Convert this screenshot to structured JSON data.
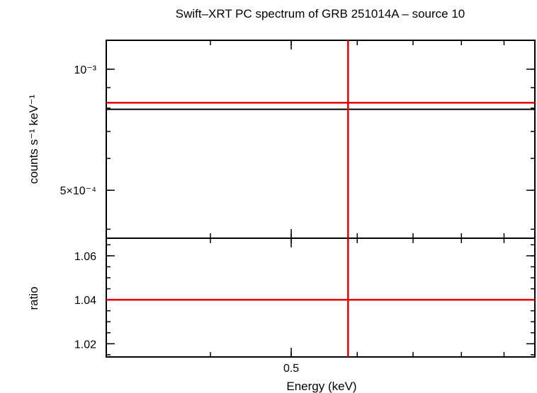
{
  "chart_data": {
    "title": "Swift–XRT PC spectrum of GRB 251014A – source 10",
    "xlabel": "Energy (keV)",
    "xscale": "log",
    "xlim": [
      0.3,
      0.98
    ],
    "x_ticks": [
      {
        "value": 0.5,
        "label": "0.5"
      }
    ],
    "panels": [
      {
        "name": "spectrum",
        "type": "line",
        "ylabel": "counts s⁻¹ keV⁻¹",
        "yscale": "log",
        "ylim": [
          0.00038,
          0.00118
        ],
        "y_ticks": [
          {
            "value": 0.001,
            "label": "10⁻³"
          },
          {
            "value": 0.0005,
            "label": "5×10⁻⁴"
          }
        ],
        "series": [
          {
            "role": "model",
            "color": "#000000",
            "x": [
              0.3,
              0.98
            ],
            "y": [
              0.000795,
              0.000795
            ]
          },
          {
            "role": "data",
            "color": "#e00000",
            "x": [
              0.3,
              0.98
            ],
            "y": [
              0.000825,
              0.000825
            ]
          },
          {
            "role": "marker",
            "color": "#e00000",
            "orientation": "vertical",
            "x": 0.585
          }
        ]
      },
      {
        "name": "ratio",
        "type": "line",
        "ylabel": "ratio",
        "yscale": "linear",
        "ylim": [
          1.014,
          1.068
        ],
        "y_ticks": [
          {
            "value": 1.02,
            "label": "1.02"
          },
          {
            "value": 1.04,
            "label": "1.04"
          },
          {
            "value": 1.06,
            "label": "1.06"
          }
        ],
        "series": [
          {
            "role": "data",
            "color": "#e00000",
            "x": [
              0.3,
              0.98
            ],
            "y": [
              1.04,
              1.04
            ]
          },
          {
            "role": "marker",
            "color": "#e00000",
            "orientation": "vertical",
            "x": 0.585
          }
        ]
      }
    ]
  }
}
